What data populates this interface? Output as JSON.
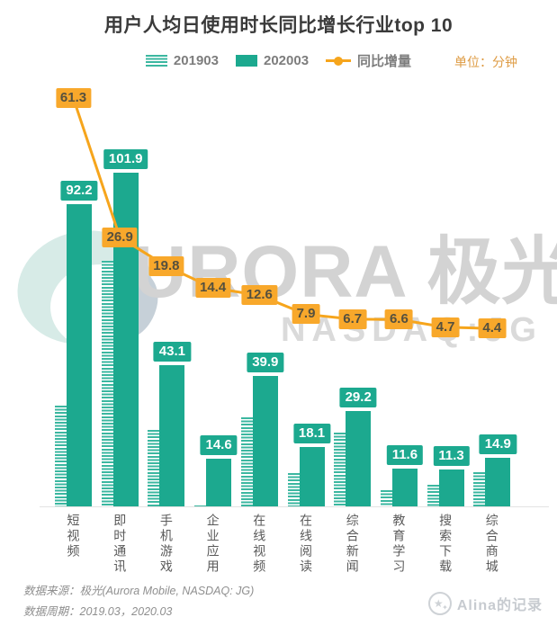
{
  "page": {
    "title": "用户人均日使用时长同比增长行业top 10"
  },
  "legend": {
    "series1_label": "201903",
    "series2_label": "202003",
    "line_label": "同比增量",
    "unit_label": "单位：分钟"
  },
  "chart_data": {
    "type": "bar",
    "title": "用户人均日使用时长同比增长行业top 10",
    "unit": "分钟",
    "legend_position": "top",
    "grid": false,
    "ylim": [
      0,
      110
    ],
    "line_ylim": [
      0,
      70
    ],
    "categories": [
      "短视频",
      "即时通讯",
      "手机游戏",
      "企业应用",
      "在线视频",
      "在线阅读",
      "综合新闻",
      "教育学习",
      "搜索下载",
      "综合商城"
    ],
    "series": [
      {
        "name": "201903",
        "style": "striped",
        "values": [
          30.9,
          75.0,
          23.3,
          0.2,
          27.3,
          10.2,
          22.5,
          5.0,
          6.6,
          10.5
        ]
      },
      {
        "name": "202003",
        "style": "solid",
        "values": [
          92.2,
          101.9,
          43.1,
          14.6,
          39.9,
          18.1,
          29.2,
          11.6,
          11.3,
          14.9
        ]
      }
    ],
    "line_series": {
      "name": "同比增量",
      "values": [
        61.3,
        26.9,
        19.8,
        14.4,
        12.6,
        7.9,
        6.7,
        6.6,
        4.7,
        4.4
      ]
    },
    "bar_value_labels": [
      "92.2",
      "101.9",
      "43.1",
      "14.6",
      "39.9",
      "18.1",
      "29.2",
      "11.6",
      "11.3",
      "14.9"
    ],
    "line_value_labels": [
      "61.3",
      "26.9",
      "19.8",
      "14.4",
      "12.6",
      "7.9",
      "6.7",
      "6.6",
      "4.7",
      "4.4"
    ]
  },
  "watermark": {
    "text": "URORA 极光",
    "subtext": "NASDAQ:JG"
  },
  "footer": {
    "source_line": "数据来源：极光(Aurora Mobile, NASDAQ: JG)",
    "period_line": "数据周期：2019.03，2020.03",
    "brand": "Alina的记录"
  },
  "colors": {
    "teal": "#1CA98F",
    "teal_stripe": "#3BB7A0",
    "orange_line": "#F6A51C",
    "orange_box": "#F8A82B",
    "orange_box_text": "#55503E",
    "unit_text": "#DE9B43",
    "axis_line": "#E3E3E3",
    "category_text": "#5A5A5A",
    "legend_text": "#7D7D7D",
    "title_text": "#3A3A3A",
    "watermark_gray": "#D3D3D3",
    "watermark_teal": "#D7EBE7",
    "footer_text": "#8F8F8F",
    "brand_text": "#C7CBD0"
  }
}
